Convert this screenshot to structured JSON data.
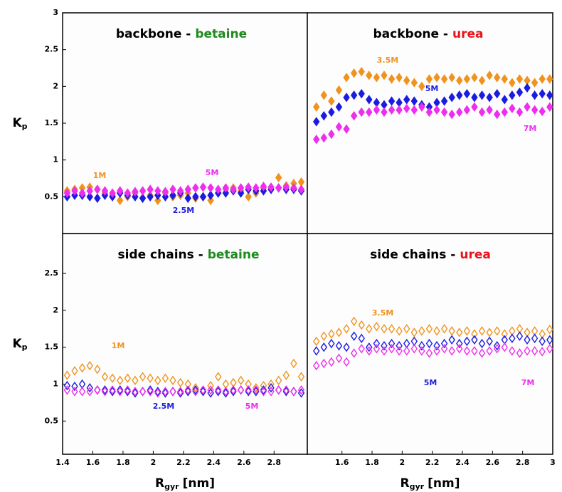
{
  "chart_data": [
    {
      "type": "scatter",
      "title": "backbone -",
      "title_highlight": "betaine",
      "title_highlight_color": "#1f8a1f",
      "ylabel": {
        "main": "K",
        "sub": "p"
      },
      "marker_fill": true,
      "xlim": [
        1.4,
        3.02
      ],
      "ylim": [
        0,
        3
      ],
      "yticks": [
        0.5,
        1.0,
        1.5,
        2.0,
        2.5,
        3.0
      ],
      "x": [
        1.43,
        1.48,
        1.53,
        1.58,
        1.63,
        1.68,
        1.73,
        1.78,
        1.83,
        1.88,
        1.93,
        1.98,
        2.03,
        2.08,
        2.13,
        2.18,
        2.23,
        2.28,
        2.33,
        2.38,
        2.43,
        2.48,
        2.53,
        2.58,
        2.63,
        2.68,
        2.73,
        2.78,
        2.83,
        2.88,
        2.93,
        2.98
      ],
      "series": [
        {
          "name": "1M",
          "color": "#f0931e",
          "values": [
            0.58,
            0.6,
            0.62,
            0.63,
            0.6,
            0.55,
            0.52,
            0.45,
            0.5,
            0.55,
            0.48,
            0.52,
            0.45,
            0.55,
            0.5,
            0.52,
            0.55,
            0.48,
            0.5,
            0.45,
            0.55,
            0.6,
            0.62,
            0.58,
            0.5,
            0.55,
            0.62,
            0.6,
            0.76,
            0.65,
            0.68,
            0.7
          ]
        },
        {
          "name": "2.5M",
          "color": "#1c1ce0",
          "values": [
            0.5,
            0.52,
            0.52,
            0.5,
            0.48,
            0.52,
            0.5,
            0.55,
            0.52,
            0.5,
            0.48,
            0.5,
            0.52,
            0.5,
            0.52,
            0.55,
            0.48,
            0.5,
            0.5,
            0.52,
            0.55,
            0.55,
            0.58,
            0.55,
            0.6,
            0.58,
            0.58,
            0.6,
            0.62,
            0.6,
            0.6,
            0.58
          ]
        },
        {
          "name": "5M",
          "color": "#ee2eee",
          "values": [
            0.55,
            0.58,
            0.55,
            0.58,
            0.6,
            0.58,
            0.55,
            0.58,
            0.55,
            0.57,
            0.58,
            0.6,
            0.58,
            0.57,
            0.6,
            0.58,
            0.6,
            0.62,
            0.63,
            0.62,
            0.6,
            0.62,
            0.6,
            0.62,
            0.63,
            0.62,
            0.64,
            0.63,
            0.62,
            0.63,
            0.62,
            0.6
          ]
        }
      ]
    },
    {
      "type": "scatter",
      "title": "backbone -",
      "title_highlight": "urea",
      "title_highlight_color": "#e8141c",
      "marker_fill": true,
      "xlim": [
        1.37,
        3.0
      ],
      "ylim": [
        0,
        3
      ],
      "x": [
        1.43,
        1.48,
        1.53,
        1.58,
        1.63,
        1.68,
        1.73,
        1.78,
        1.83,
        1.88,
        1.93,
        1.98,
        2.03,
        2.08,
        2.13,
        2.18,
        2.23,
        2.28,
        2.33,
        2.38,
        2.43,
        2.48,
        2.53,
        2.58,
        2.63,
        2.68,
        2.73,
        2.78,
        2.83,
        2.88,
        2.93,
        2.98
      ],
      "series": [
        {
          "name": "3.5M",
          "color": "#f0931e",
          "values": [
            1.72,
            1.88,
            1.8,
            1.95,
            2.12,
            2.18,
            2.2,
            2.15,
            2.12,
            2.15,
            2.1,
            2.12,
            2.08,
            2.05,
            2.0,
            2.1,
            2.12,
            2.1,
            2.12,
            2.08,
            2.1,
            2.12,
            2.08,
            2.15,
            2.12,
            2.1,
            2.05,
            2.1,
            2.08,
            2.05,
            2.1,
            2.1
          ]
        },
        {
          "name": "5M",
          "color": "#1c1ce0",
          "values": [
            1.52,
            1.6,
            1.65,
            1.72,
            1.85,
            1.88,
            1.9,
            1.82,
            1.78,
            1.75,
            1.8,
            1.78,
            1.82,
            1.8,
            1.75,
            1.72,
            1.78,
            1.8,
            1.85,
            1.88,
            1.9,
            1.85,
            1.88,
            1.85,
            1.9,
            1.82,
            1.88,
            1.92,
            1.98,
            1.88,
            1.9,
            1.88
          ]
        },
        {
          "name": "7M",
          "color": "#ee2eee",
          "values": [
            1.28,
            1.3,
            1.35,
            1.45,
            1.42,
            1.6,
            1.65,
            1.65,
            1.68,
            1.65,
            1.68,
            1.68,
            1.7,
            1.68,
            1.72,
            1.65,
            1.68,
            1.65,
            1.62,
            1.65,
            1.68,
            1.72,
            1.65,
            1.68,
            1.62,
            1.65,
            1.7,
            1.65,
            1.72,
            1.68,
            1.66,
            1.72
          ]
        }
      ]
    },
    {
      "type": "scatter",
      "title": "side chains -",
      "title_highlight": "betaine",
      "title_highlight_color": "#1f8a1f",
      "ylabel": {
        "main": "K",
        "sub": "p"
      },
      "xlabel": {
        "main": "R",
        "sub": "gyr",
        "unit": "[nm]"
      },
      "marker_fill": false,
      "xlim": [
        1.4,
        3.02
      ],
      "ylim": [
        0.05,
        3.04
      ],
      "yticks": [
        0.5,
        1.0,
        1.5,
        2.0,
        2.5
      ],
      "xticks": [
        1.4,
        1.6,
        1.8,
        2.0,
        2.2,
        2.4,
        2.6,
        2.8
      ],
      "x": [
        1.43,
        1.48,
        1.53,
        1.58,
        1.63,
        1.68,
        1.73,
        1.78,
        1.83,
        1.88,
        1.93,
        1.98,
        2.03,
        2.08,
        2.13,
        2.18,
        2.23,
        2.28,
        2.33,
        2.38,
        2.43,
        2.48,
        2.53,
        2.58,
        2.63,
        2.68,
        2.73,
        2.78,
        2.83,
        2.88,
        2.93,
        2.98
      ],
      "series": [
        {
          "name": "1M",
          "color": "#f0931e",
          "values": [
            1.12,
            1.18,
            1.22,
            1.25,
            1.2,
            1.1,
            1.08,
            1.05,
            1.08,
            1.05,
            1.1,
            1.08,
            1.05,
            1.08,
            1.05,
            1.02,
            1.0,
            0.95,
            0.92,
            0.98,
            1.1,
            1.0,
            1.02,
            1.05,
            1.0,
            0.95,
            0.98,
            1.0,
            1.05,
            1.12,
            1.28,
            1.1
          ]
        },
        {
          "name": "2.5M",
          "color": "#1c1ce0",
          "values": [
            0.98,
            0.97,
            1.0,
            0.95,
            0.92,
            0.92,
            0.9,
            0.92,
            0.9,
            0.88,
            0.9,
            0.92,
            0.9,
            0.88,
            0.9,
            0.88,
            0.9,
            0.92,
            0.9,
            0.88,
            0.9,
            0.88,
            0.9,
            0.92,
            0.9,
            0.9,
            0.92,
            0.95,
            0.92,
            0.9,
            0.9,
            0.88
          ]
        },
        {
          "name": "5M",
          "color": "#ee2eee",
          "values": [
            0.92,
            0.9,
            0.9,
            0.9,
            0.92,
            0.9,
            0.92,
            0.9,
            0.92,
            0.9,
            0.9,
            0.9,
            0.88,
            0.9,
            0.9,
            0.9,
            0.92,
            0.9,
            0.92,
            0.92,
            0.92,
            0.9,
            0.92,
            0.92,
            0.92,
            0.92,
            0.9,
            0.9,
            0.92,
            0.92,
            0.9,
            0.92
          ]
        }
      ]
    },
    {
      "type": "scatter",
      "title": "side chains -",
      "title_highlight": "urea",
      "title_highlight_color": "#e8141c",
      "xlabel": {
        "main": "R",
        "sub": "gyr",
        "unit": "[nm]"
      },
      "marker_fill": false,
      "xlim": [
        1.37,
        3.0
      ],
      "ylim": [
        0.05,
        3.04
      ],
      "xticks": [
        1.6,
        1.8,
        2.0,
        2.2,
        2.4,
        2.6,
        2.8,
        3.0
      ],
      "x": [
        1.43,
        1.48,
        1.53,
        1.58,
        1.63,
        1.68,
        1.73,
        1.78,
        1.83,
        1.88,
        1.93,
        1.98,
        2.03,
        2.08,
        2.13,
        2.18,
        2.23,
        2.28,
        2.33,
        2.38,
        2.43,
        2.48,
        2.53,
        2.58,
        2.63,
        2.68,
        2.73,
        2.78,
        2.83,
        2.88,
        2.93,
        2.98
      ],
      "series": [
        {
          "name": "3.5M",
          "color": "#f0931e",
          "values": [
            1.58,
            1.65,
            1.68,
            1.7,
            1.75,
            1.85,
            1.8,
            1.75,
            1.78,
            1.75,
            1.75,
            1.72,
            1.75,
            1.7,
            1.72,
            1.75,
            1.72,
            1.75,
            1.72,
            1.7,
            1.72,
            1.68,
            1.72,
            1.7,
            1.72,
            1.68,
            1.72,
            1.75,
            1.7,
            1.72,
            1.68,
            1.74
          ]
        },
        {
          "name": "5M",
          "color": "#1c1ce0",
          "values": [
            1.45,
            1.5,
            1.55,
            1.52,
            1.5,
            1.65,
            1.62,
            1.5,
            1.55,
            1.52,
            1.55,
            1.52,
            1.55,
            1.58,
            1.52,
            1.55,
            1.52,
            1.55,
            1.6,
            1.55,
            1.58,
            1.6,
            1.55,
            1.58,
            1.52,
            1.6,
            1.62,
            1.65,
            1.6,
            1.62,
            1.58,
            1.6
          ]
        },
        {
          "name": "7M",
          "color": "#ee2eee",
          "values": [
            1.25,
            1.28,
            1.3,
            1.35,
            1.3,
            1.42,
            1.48,
            1.45,
            1.48,
            1.45,
            1.48,
            1.45,
            1.45,
            1.48,
            1.45,
            1.42,
            1.45,
            1.48,
            1.45,
            1.48,
            1.45,
            1.45,
            1.42,
            1.45,
            1.48,
            1.5,
            1.45,
            1.42,
            1.45,
            1.45,
            1.44,
            1.48
          ]
        }
      ]
    }
  ]
}
